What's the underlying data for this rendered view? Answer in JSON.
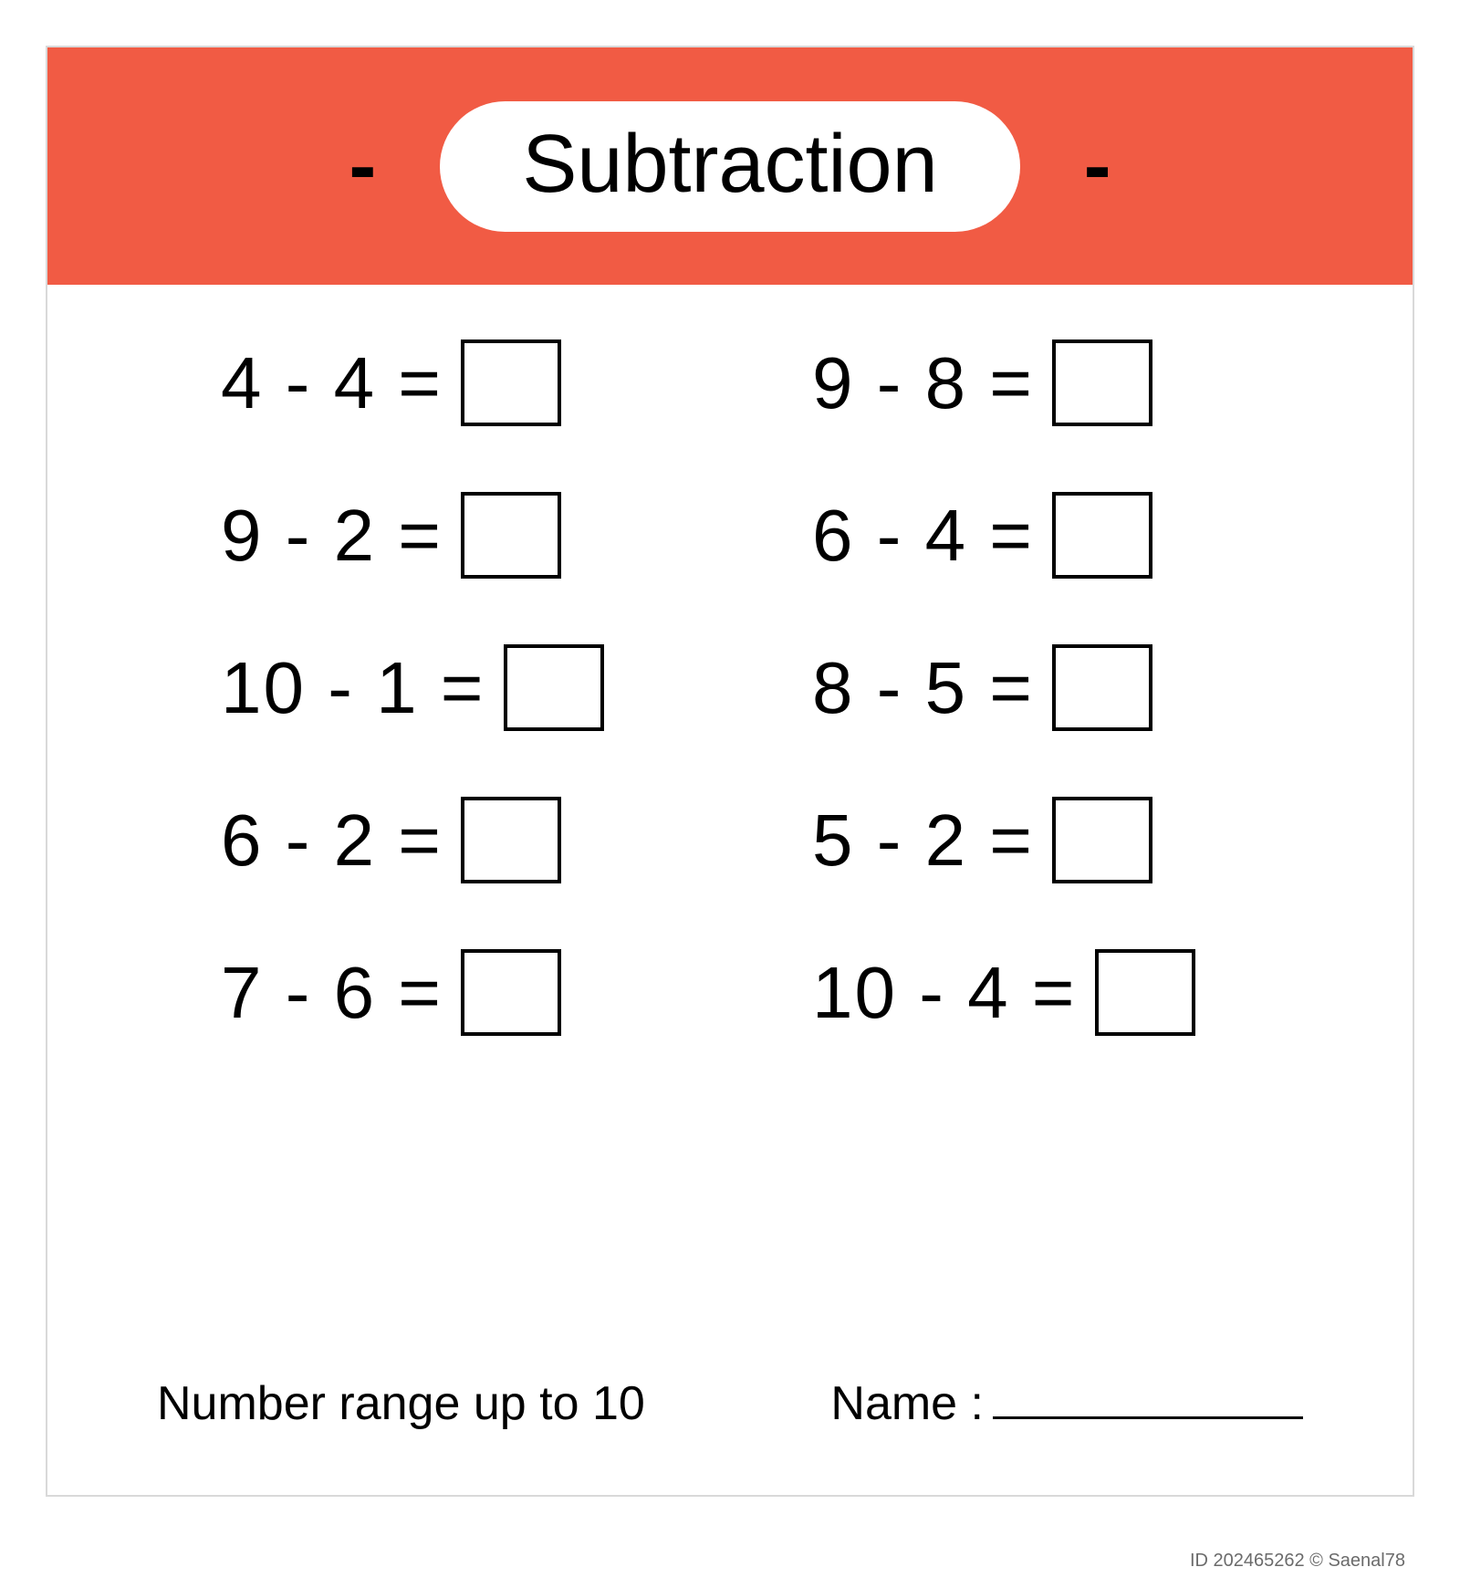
{
  "header": {
    "bg_color": "#f15b44",
    "dash_left": "-",
    "dash_right": "-",
    "title": "Subtraction",
    "title_pill_bg": "#ffffff",
    "title_fontsize": 90
  },
  "problems": {
    "fontsize": 80,
    "box_border_color": "#000000",
    "left": [
      {
        "a": 4,
        "op": "-",
        "b": 4,
        "eq": "="
      },
      {
        "a": 9,
        "op": "-",
        "b": 2,
        "eq": "="
      },
      {
        "a": 10,
        "op": "-",
        "b": 1,
        "eq": "="
      },
      {
        "a": 6,
        "op": "-",
        "b": 2,
        "eq": "="
      },
      {
        "a": 7,
        "op": "-",
        "b": 6,
        "eq": "="
      }
    ],
    "right": [
      {
        "a": 9,
        "op": "-",
        "b": 8,
        "eq": "="
      },
      {
        "a": 6,
        "op": "-",
        "b": 4,
        "eq": "="
      },
      {
        "a": 8,
        "op": "-",
        "b": 5,
        "eq": "="
      },
      {
        "a": 5,
        "op": "-",
        "b": 2,
        "eq": "="
      },
      {
        "a": 10,
        "op": "-",
        "b": 4,
        "eq": "="
      }
    ]
  },
  "footer": {
    "range_text": "Number range up to 10",
    "name_label": "Name :",
    "fontsize": 52
  },
  "meta": {
    "id_text": "ID 202465262 © Saenal78"
  },
  "colors": {
    "page_bg": "#ffffff",
    "page_border": "#d9d9d9",
    "text": "#000000"
  }
}
